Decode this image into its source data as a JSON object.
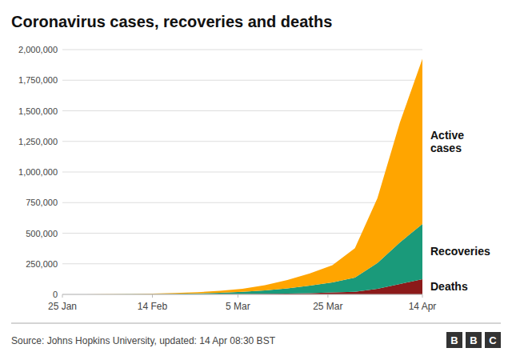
{
  "chart_data": {
    "type": "area",
    "stacked": true,
    "title": "Coronavirus cases, recoveries and deaths",
    "annotations": [
      "Source: Johns Hopkins University, updated: 14 Apr 08:30 BST",
      "BBC"
    ],
    "x": [
      0,
      5,
      10,
      15,
      20,
      25,
      30,
      35,
      40,
      45,
      50,
      55,
      60,
      65,
      70,
      75,
      80
    ],
    "xlim": [
      0,
      80
    ],
    "xticks": [
      {
        "value": 0,
        "label": "25 Jan"
      },
      {
        "value": 20,
        "label": "14 Feb"
      },
      {
        "value": 39,
        "label": "5 Mar"
      },
      {
        "value": 59,
        "label": "25 Mar"
      },
      {
        "value": 80,
        "label": "14 Apr"
      }
    ],
    "ylim": [
      0,
      2000000
    ],
    "yticks": [
      0,
      {
        "value": 250000,
        "label": "250,000"
      },
      {
        "value": 500000,
        "label": "500,000"
      },
      {
        "value": 750000,
        "label": "750,000"
      },
      {
        "value": 1000000,
        "label": "1,000,000"
      },
      {
        "value": 1250000,
        "label": "1,250,000"
      },
      {
        "value": 1500000,
        "label": "1,500,000"
      },
      {
        "value": 1750000,
        "label": "1,750,000"
      },
      {
        "value": 2000000,
        "label": "2,000,000"
      }
    ],
    "grid": true,
    "series": [
      {
        "name": "Deaths",
        "color": "#8B1A1A",
        "values": [
          0,
          50,
          200,
          600,
          1100,
          1500,
          2000,
          2900,
          3800,
          5000,
          7000,
          10000,
          15700,
          22000,
          46000,
          85000,
          125000
        ]
      },
      {
        "name": "Recoveries",
        "color": "#1A9A7A",
        "values": [
          0,
          50,
          300,
          800,
          2000,
          3500,
          6000,
          9500,
          17000,
          27000,
          42000,
          62000,
          83000,
          115000,
          210000,
          340000,
          450000
        ]
      },
      {
        "name": "Active\ncases",
        "color": "#FFA500",
        "values": [
          0,
          150,
          600,
          2000,
          4000,
          6500,
          10000,
          17000,
          25000,
          43000,
          68000,
          100000,
          140000,
          240000,
          530000,
          980000,
          1350000
        ]
      }
    ]
  }
}
